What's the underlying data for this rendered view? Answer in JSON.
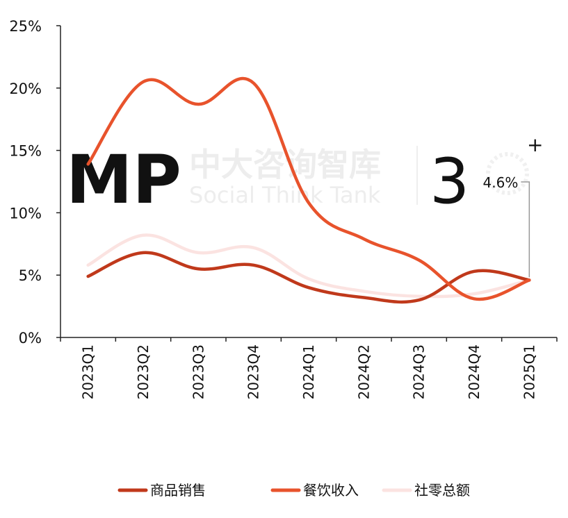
{
  "chart_data": {
    "type": "line",
    "categories": [
      "2023Q1",
      "2023Q2",
      "2023Q3",
      "2023Q4",
      "2024Q1",
      "2024Q2",
      "2024Q3",
      "2024Q4",
      "2025Q1"
    ],
    "series": [
      {
        "name": "商品销售",
        "color": "#c0391b",
        "values": [
          4.9,
          6.8,
          5.5,
          5.8,
          4.0,
          3.2,
          3.0,
          5.3,
          4.6
        ]
      },
      {
        "name": "餐饮收入",
        "color": "#e8532c",
        "values": [
          13.9,
          20.5,
          18.7,
          20.4,
          10.8,
          7.9,
          6.2,
          3.1,
          4.6
        ]
      },
      {
        "name": "社零总额",
        "color": "#fbe3e1",
        "values": [
          5.8,
          8.2,
          6.8,
          7.2,
          4.7,
          3.7,
          3.3,
          3.5,
          4.6
        ]
      }
    ],
    "y_ticks": [
      "0%",
      "5%",
      "10%",
      "15%",
      "20%",
      "25%"
    ],
    "ylim": [
      0,
      25
    ],
    "annotation": {
      "text": "4.6%",
      "category": "2025Q1",
      "value": 4.6
    },
    "legend_position": "bottom",
    "grid": false
  },
  "watermark": {
    "logo": "MP",
    "cn": "中大咨询智库",
    "en": "Social Think Tank",
    "num": "3"
  }
}
